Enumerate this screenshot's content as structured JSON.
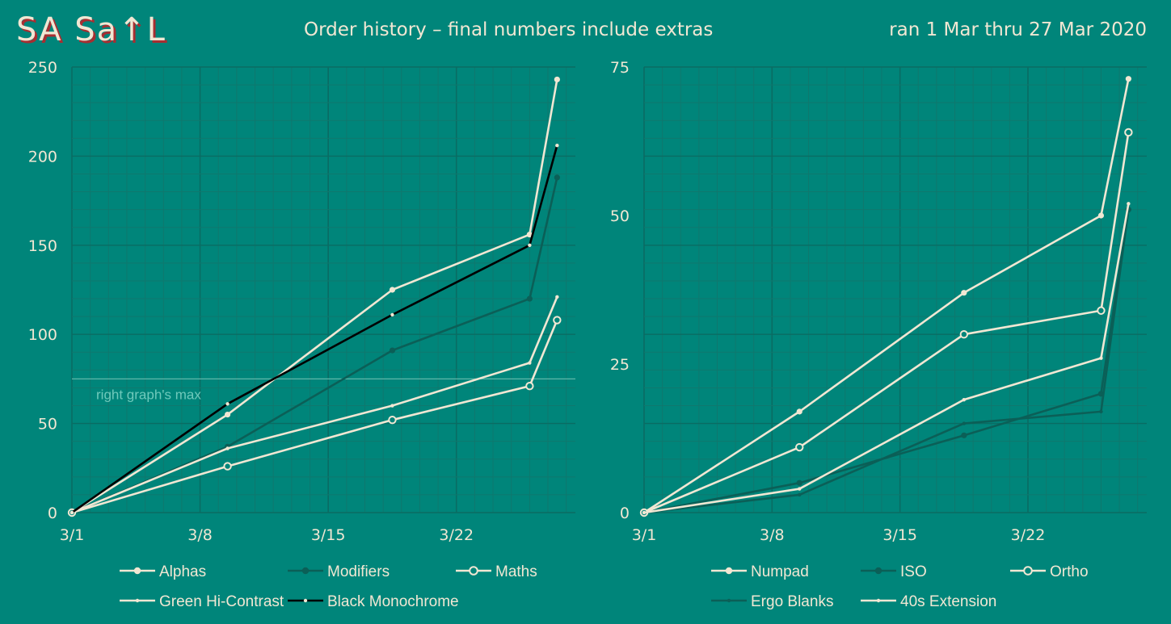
{
  "header": {
    "logo": "SA Sa↑L",
    "title": "Order history – final numbers include extras",
    "date_range": "ran 1 Mar thru 27 Mar 2020"
  },
  "colors": {
    "background": "#00857a",
    "cream": "#f1e7d3",
    "dark_teal": "#0b5f57",
    "black": "#000000",
    "grid_minor": "#0f786e",
    "grid_major": "#0a6c63",
    "accent_red": "#a82e31"
  },
  "chart_data": [
    {
      "type": "line",
      "name": "left",
      "x_day_range": [
        1,
        28.5
      ],
      "ylim": [
        0,
        250
      ],
      "yticks": [
        0,
        50,
        100,
        150,
        200,
        250
      ],
      "xticks": [
        {
          "day": 1,
          "label": "3/1"
        },
        {
          "day": 8,
          "label": "3/8"
        },
        {
          "day": 15,
          "label": "3/15"
        },
        {
          "day": 22,
          "label": "3/22"
        }
      ],
      "annotation": {
        "label": "right graph's max",
        "y": 75
      },
      "series": [
        {
          "name": "Alphas",
          "style": "cream-filled",
          "x": [
            1,
            9.5,
            18.5,
            26,
            27.5
          ],
          "values": [
            0,
            55,
            125,
            156,
            243
          ]
        },
        {
          "name": "Modifiers",
          "style": "dark-filled",
          "x": [
            1,
            9.5,
            18.5,
            26,
            27.5
          ],
          "values": [
            0,
            37,
            91,
            120,
            188
          ]
        },
        {
          "name": "Maths",
          "style": "cream-open",
          "x": [
            1,
            9.5,
            18.5,
            26,
            27.5
          ],
          "values": [
            0,
            26,
            52,
            71,
            108
          ]
        },
        {
          "name": "Green Hi-Contrast",
          "style": "cream-dot",
          "x": [
            1,
            9.5,
            18.5,
            26,
            27.5
          ],
          "values": [
            0,
            36,
            60,
            84,
            121
          ]
        },
        {
          "name": "Black Monochrome",
          "style": "black-dot",
          "x": [
            1,
            9.5,
            18.5,
            26,
            27.5
          ],
          "values": [
            0,
            61,
            111,
            150,
            206
          ]
        }
      ]
    },
    {
      "type": "line",
      "name": "right",
      "x_day_range": [
        1,
        28.5
      ],
      "ylim": [
        0,
        75
      ],
      "yticks": [
        0,
        25,
        50,
        75
      ],
      "xticks": [
        {
          "day": 1,
          "label": "3/1"
        },
        {
          "day": 8,
          "label": "3/8"
        },
        {
          "day": 15,
          "label": "3/15"
        },
        {
          "day": 22,
          "label": "3/22"
        }
      ],
      "series": [
        {
          "name": "Numpad",
          "style": "cream-filled",
          "x": [
            1,
            9.5,
            18.5,
            26,
            27.5
          ],
          "values": [
            0,
            17,
            37,
            50,
            73
          ]
        },
        {
          "name": "ISO",
          "style": "dark-filled",
          "x": [
            1,
            9.5,
            18.5,
            26,
            27.5
          ],
          "values": [
            0,
            5,
            13,
            20,
            51
          ]
        },
        {
          "name": "Ortho",
          "style": "cream-open",
          "x": [
            1,
            9.5,
            18.5,
            26,
            27.5
          ],
          "values": [
            0,
            11,
            30,
            34,
            64
          ]
        },
        {
          "name": "Ergo Blanks",
          "style": "dark-dot",
          "x": [
            1,
            9.5,
            18.5,
            26,
            27.5
          ],
          "values": [
            0,
            3,
            15,
            17,
            51
          ]
        },
        {
          "name": "40s Extension",
          "style": "cream-dot",
          "x": [
            1,
            9.5,
            18.5,
            26,
            27.5
          ],
          "values": [
            0,
            4,
            19,
            26,
            52
          ]
        }
      ]
    }
  ]
}
